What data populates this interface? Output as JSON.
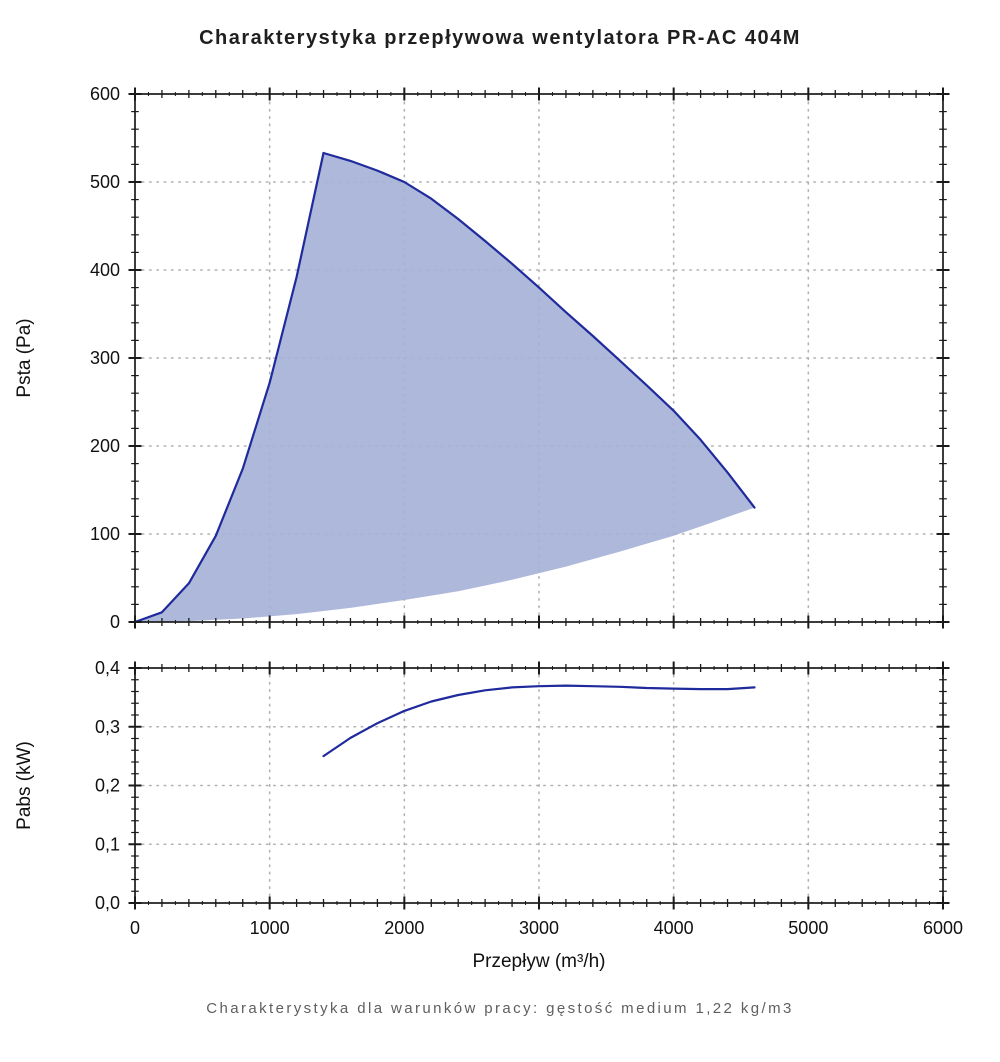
{
  "title": "Charakterystyka przepływowa wentylatora PR-AC 404M",
  "footer": "Charakterystyka dla warunków pracy: gęstość medium 1,22 kg/m3",
  "colors": {
    "curve": "#1f2a9c",
    "region_fill": "#a5b0d6",
    "grid": "#b3b3b3",
    "axis": "#1a1a1a",
    "tick_text": "#111111"
  },
  "chart_data": [
    {
      "type": "area",
      "name": "pressure-chart",
      "xlabel": "",
      "ylabel": "Psta (Pa)",
      "xlim": [
        0,
        6000
      ],
      "ylim": [
        0,
        600
      ],
      "x_ticks": [
        0,
        1000,
        2000,
        3000,
        4000,
        5000,
        6000
      ],
      "x_tick_labels": [
        "0",
        "1000",
        "2000",
        "3000",
        "4000",
        "5000",
        "6000"
      ],
      "y_ticks": [
        0,
        100,
        200,
        300,
        400,
        500,
        600
      ],
      "y_tick_labels": [
        "0",
        "100",
        "200",
        "300",
        "400",
        "500",
        "600"
      ],
      "x_minor_step": 100,
      "x_medium_step": 200,
      "y_minor_step": 20,
      "grid": "dotted",
      "series": [
        {
          "name": "system-curve-max",
          "stroke": true,
          "points": [
            [
              0,
              0
            ],
            [
              200,
              11
            ],
            [
              400,
              44
            ],
            [
              600,
              98
            ],
            [
              800,
              174
            ],
            [
              1000,
              272
            ],
            [
              1200,
              392
            ],
            [
              1400,
              533
            ]
          ]
        },
        {
          "name": "fan-curve",
          "stroke": true,
          "points": [
            [
              1400,
              533
            ],
            [
              1600,
              524
            ],
            [
              1800,
              513
            ],
            [
              2000,
              500
            ],
            [
              2200,
              481
            ],
            [
              2400,
              458
            ],
            [
              2600,
              433
            ],
            [
              2800,
              407
            ],
            [
              3000,
              380
            ],
            [
              3200,
              352
            ],
            [
              3400,
              325
            ],
            [
              3600,
              297
            ],
            [
              3800,
              269
            ],
            [
              4000,
              240
            ],
            [
              4200,
              207
            ],
            [
              4400,
              170
            ],
            [
              4600,
              130
            ]
          ]
        },
        {
          "name": "system-curve-min",
          "stroke": false,
          "points": [
            [
              0,
              0
            ],
            [
              400,
              1
            ],
            [
              800,
              4
            ],
            [
              1200,
              9
            ],
            [
              1600,
              16
            ],
            [
              2000,
              25
            ],
            [
              2400,
              35
            ],
            [
              2800,
              48
            ],
            [
              3200,
              63
            ],
            [
              3600,
              80
            ],
            [
              4000,
              98
            ],
            [
              4300,
              114
            ],
            [
              4600,
              130
            ]
          ]
        }
      ],
      "region": {
        "upper": [
          "system-curve-max",
          "fan-curve"
        ],
        "lower": [
          "system-curve-min"
        ],
        "fill_opacity": 0.9
      }
    },
    {
      "type": "line",
      "name": "power-chart",
      "xlabel": "Przepływ (m³/h)",
      "ylabel": "Pabs (kW)",
      "xlim": [
        0,
        6000
      ],
      "ylim": [
        0,
        0.4
      ],
      "x_ticks": [
        0,
        1000,
        2000,
        3000,
        4000,
        5000,
        6000
      ],
      "x_tick_labels": [
        "0",
        "1000",
        "2000",
        "3000",
        "4000",
        "5000",
        "6000"
      ],
      "y_ticks": [
        0,
        0.1,
        0.2,
        0.3,
        0.4
      ],
      "y_tick_labels": [
        "0,0",
        "0,1",
        "0,2",
        "0,3",
        "0,4"
      ],
      "x_minor_step": 100,
      "x_medium_step": 200,
      "y_minor_step": 0.02,
      "grid": "dotted",
      "series": [
        {
          "name": "power-curve",
          "stroke": true,
          "points": [
            [
              1400,
              0.25
            ],
            [
              1600,
              0.281
            ],
            [
              1800,
              0.306
            ],
            [
              2000,
              0.327
            ],
            [
              2200,
              0.343
            ],
            [
              2400,
              0.354
            ],
            [
              2600,
              0.362
            ],
            [
              2800,
              0.367
            ],
            [
              3000,
              0.369
            ],
            [
              3200,
              0.37
            ],
            [
              3400,
              0.369
            ],
            [
              3600,
              0.368
            ],
            [
              3800,
              0.366
            ],
            [
              4000,
              0.365
            ],
            [
              4200,
              0.364
            ],
            [
              4400,
              0.364
            ],
            [
              4600,
              0.367
            ]
          ]
        }
      ]
    }
  ]
}
